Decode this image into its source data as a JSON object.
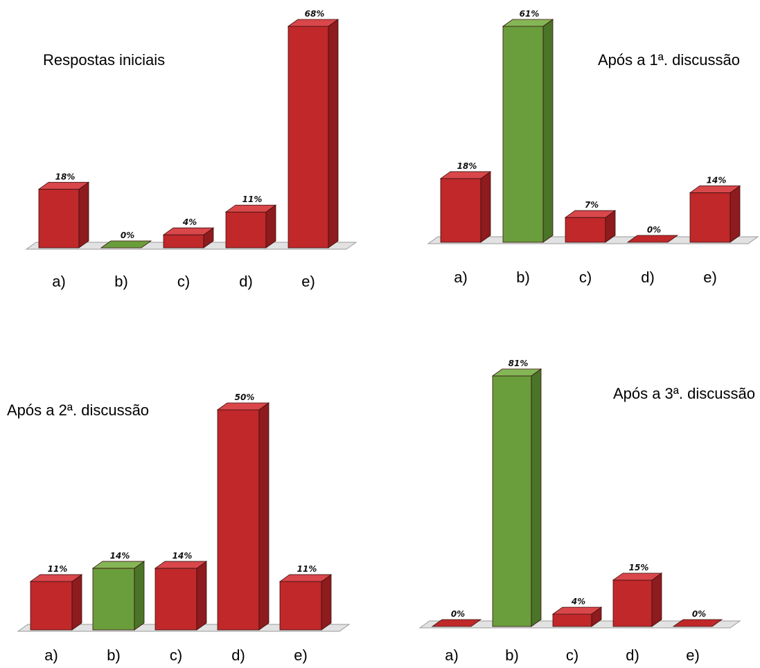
{
  "colors": {
    "wrong_face": "#c0282a",
    "wrong_side": "#8e1b1d",
    "wrong_top": "#d9474a",
    "correct_face": "#6a9e3c",
    "correct_side": "#4a7428",
    "correct_top": "#84b656",
    "edge": "#3a1010",
    "floor": "#e2e2e2",
    "floor_edge": "#9a9a9a"
  },
  "chart_data": [
    {
      "type": "bar",
      "title": "Respostas iniciais",
      "categories": [
        "a)",
        "b)",
        "c)",
        "d)",
        "e)"
      ],
      "values": [
        18,
        0,
        4,
        11,
        68
      ],
      "value_labels": [
        "18%",
        "0%",
        "4%",
        "11%",
        "68%"
      ],
      "correct_index": 1,
      "ylim": [
        0,
        68
      ],
      "grid": false,
      "legend": "none"
    },
    {
      "type": "bar",
      "title": "Após a 1ª. discussão",
      "categories": [
        "a)",
        "b)",
        "c)",
        "d)",
        "e)"
      ],
      "values": [
        18,
        61,
        7,
        0,
        14
      ],
      "value_labels": [
        "18%",
        "61%",
        "7%",
        "0%",
        "14%"
      ],
      "correct_index": 1,
      "ylim": [
        0,
        61
      ],
      "grid": false,
      "legend": "none"
    },
    {
      "type": "bar",
      "title": "Após a 2ª. discussão",
      "categories": [
        "a)",
        "b)",
        "c)",
        "d)",
        "e)"
      ],
      "values": [
        11,
        14,
        14,
        50,
        11
      ],
      "value_labels": [
        "11%",
        "14%",
        "14%",
        "50%",
        "11%"
      ],
      "correct_index": 1,
      "ylim": [
        0,
        50
      ],
      "grid": false,
      "legend": "none"
    },
    {
      "type": "bar",
      "title": "Após a 3ª. discussão",
      "categories": [
        "a)",
        "b)",
        "c)",
        "d)",
        "e)"
      ],
      "values": [
        0,
        81,
        4,
        15,
        0
      ],
      "value_labels": [
        "0%",
        "81%",
        "4%",
        "15%",
        "0%"
      ],
      "correct_index": 1,
      "ylim": [
        0,
        81
      ],
      "grid": false,
      "legend": "none"
    }
  ]
}
